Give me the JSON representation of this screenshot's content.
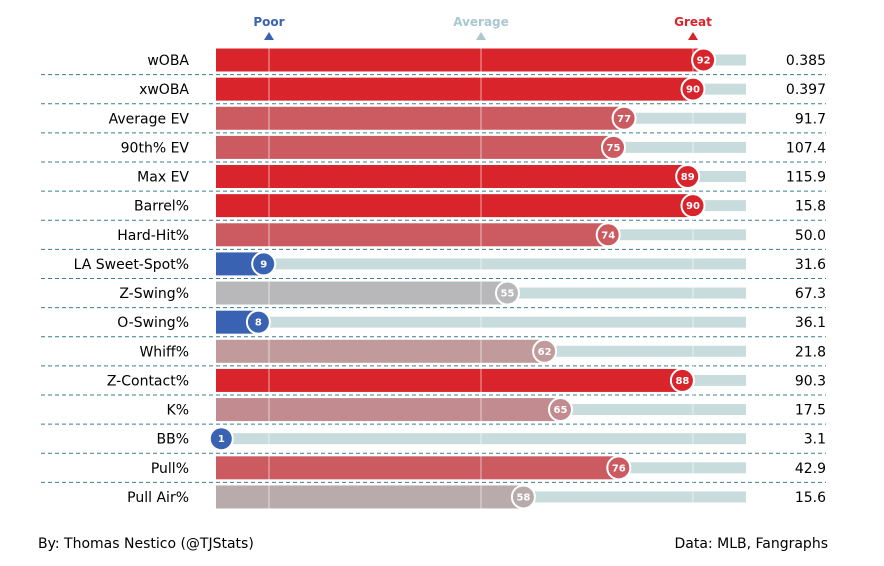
{
  "chart_data": {
    "type": "bar",
    "orientation": "horizontal",
    "xlim": [
      0,
      100
    ],
    "scale_markers": [
      {
        "label": "Poor",
        "value": 10,
        "color": "#3a62b2"
      },
      {
        "label": "Average",
        "value": 50,
        "color": "#a9c8cf"
      },
      {
        "label": "Great",
        "value": 90,
        "color": "#d9242c"
      }
    ],
    "rows": [
      {
        "label": "wOBA",
        "percentile": 92,
        "value": "0.385",
        "color": "#d9242c"
      },
      {
        "label": "xwOBA",
        "percentile": 90,
        "value": "0.397",
        "color": "#d9242c"
      },
      {
        "label": "Average EV",
        "percentile": 77,
        "value": "91.7",
        "color": "#cb5b61"
      },
      {
        "label": "90th% EV",
        "percentile": 75,
        "value": "107.4",
        "color": "#cb5b61"
      },
      {
        "label": "Max EV",
        "percentile": 89,
        "value": "115.9",
        "color": "#d9242c"
      },
      {
        "label": "Barrel%",
        "percentile": 90,
        "value": "15.8",
        "color": "#d9242c"
      },
      {
        "label": "Hard-Hit%",
        "percentile": 74,
        "value": "50.0",
        "color": "#cb5b61"
      },
      {
        "label": "LA Sweet-Spot%",
        "percentile": 9,
        "value": "31.6",
        "color": "#3a62b2"
      },
      {
        "label": "Z-Swing%",
        "percentile": 55,
        "value": "67.3",
        "color": "#b8b8ba"
      },
      {
        "label": "O-Swing%",
        "percentile": 8,
        "value": "36.1",
        "color": "#3a62b2"
      },
      {
        "label": "Whiff%",
        "percentile": 62,
        "value": "21.8",
        "color": "#c19a9c"
      },
      {
        "label": "Z-Contact%",
        "percentile": 88,
        "value": "90.3",
        "color": "#d9242c"
      },
      {
        "label": "K%",
        "percentile": 65,
        "value": "17.5",
        "color": "#c18b8f"
      },
      {
        "label": "BB%",
        "percentile": 1,
        "value": "3.1",
        "color": "#3a62b2"
      },
      {
        "label": "Pull%",
        "percentile": 76,
        "value": "42.9",
        "color": "#cb5b61"
      },
      {
        "label": "Pull Air%",
        "percentile": 58,
        "value": "15.6",
        "color": "#b9aaac"
      }
    ],
    "track_color": "#c8dcdd",
    "grid_lines": [
      10,
      50,
      90
    ]
  },
  "footer": {
    "left": "By: Thomas Nestico (@TJStats)",
    "right": "Data: MLB, Fangraphs"
  }
}
